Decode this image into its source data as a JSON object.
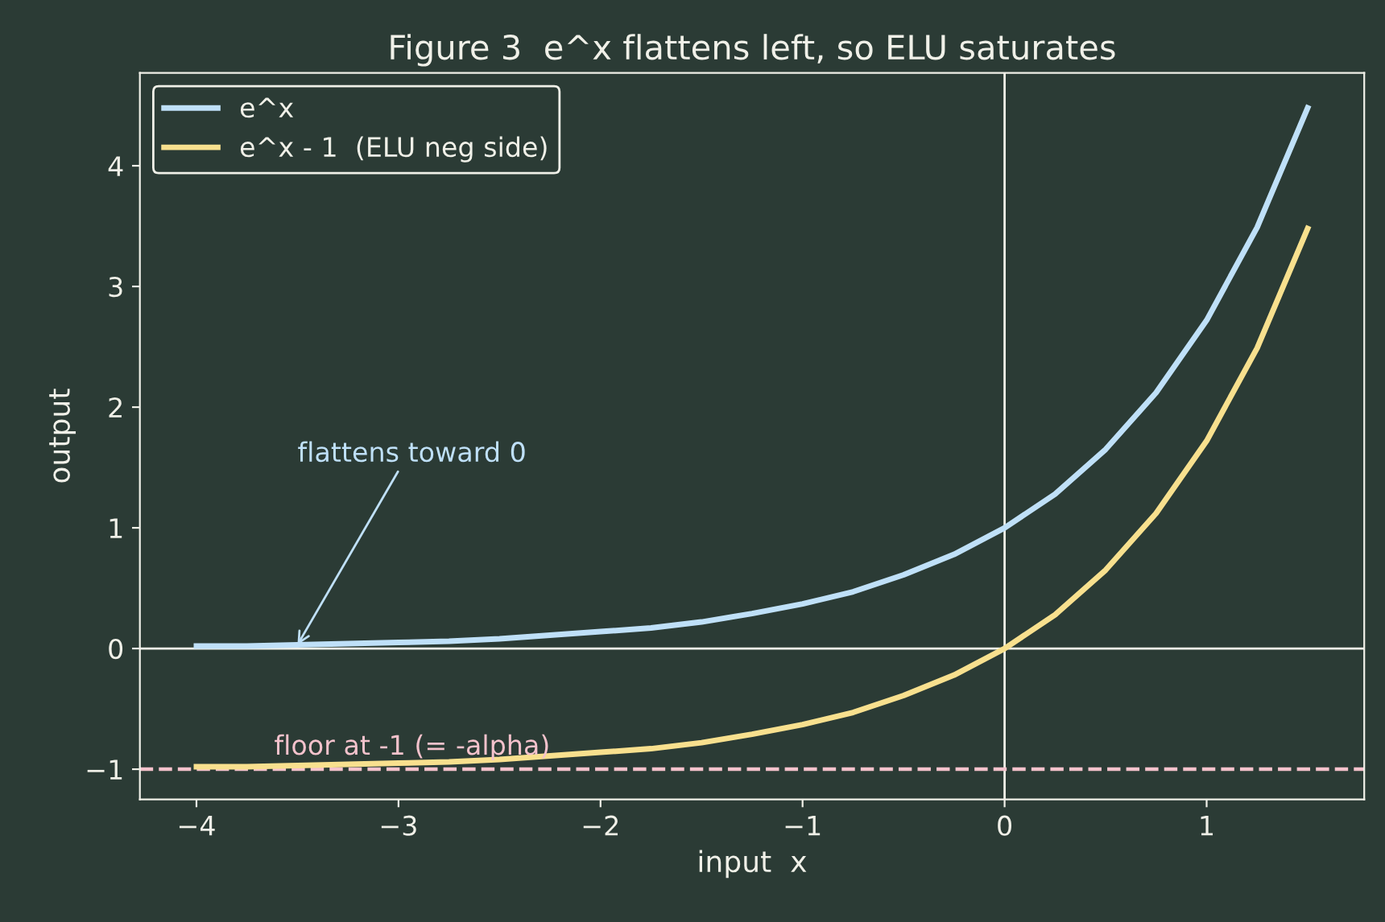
{
  "chart_data": {
    "type": "line",
    "title": "Figure 3  e^x flattens left, so ELU saturates",
    "xlabel": "input  x",
    "ylabel": "output",
    "x": [
      -4,
      -3.75,
      -3.5,
      -3.25,
      -3,
      -2.75,
      -2.5,
      -2.25,
      -2,
      -1.75,
      -1.5,
      -1.25,
      -1,
      -0.75,
      -0.5,
      -0.25,
      0,
      0.25,
      0.5,
      0.75,
      1,
      1.25,
      1.5
    ],
    "series": [
      {
        "name": "e^x",
        "color": "#bfe0f8",
        "values": [
          0.02,
          0.02,
          0.03,
          0.04,
          0.05,
          0.06,
          0.08,
          0.11,
          0.14,
          0.17,
          0.22,
          0.29,
          0.37,
          0.47,
          0.61,
          0.78,
          1.0,
          1.28,
          1.65,
          2.12,
          2.72,
          3.49,
          4.48
        ]
      },
      {
        "name": "e^x - 1  (ELU neg side)",
        "color": "#f8e08e",
        "values": [
          -0.98,
          -0.98,
          -0.97,
          -0.96,
          -0.95,
          -0.94,
          -0.92,
          -0.89,
          -0.86,
          -0.83,
          -0.78,
          -0.71,
          -0.63,
          -0.53,
          -0.39,
          -0.22,
          0.0,
          0.28,
          0.65,
          1.12,
          1.72,
          2.49,
          3.48
        ]
      }
    ],
    "xlim": [
      -4.28,
      1.78
    ],
    "ylim": [
      -1.25,
      4.77
    ],
    "xticks": [
      -4,
      -3,
      -2,
      -1,
      0,
      1
    ],
    "yticks": [
      -1,
      0,
      1,
      2,
      3,
      4
    ],
    "ref_lines": [
      {
        "axis": "x",
        "value": 0,
        "color": "#f0f0e8"
      },
      {
        "axis": "y",
        "value": 0,
        "color": "#f0f0e8"
      },
      {
        "axis": "y",
        "value": -1,
        "label": "floor at -1 (= -alpha)",
        "color": "#f4c2cc",
        "line_style": "dashed"
      }
    ],
    "annotations": [
      {
        "text": "flattens toward 0",
        "x": -3.5,
        "y": 0.03
      }
    ],
    "legend": "top left",
    "grid": false,
    "line_style": "solid",
    "marker": "none"
  }
}
